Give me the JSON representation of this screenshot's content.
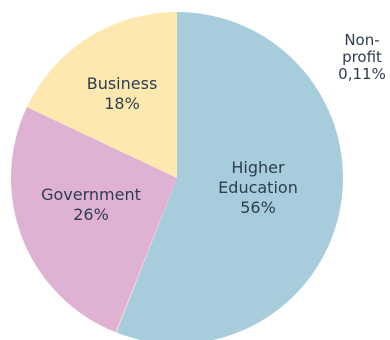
{
  "chart_data": {
    "type": "pie",
    "start_angle_deg": 0,
    "direction": "clockwise",
    "slices": [
      {
        "label_lines": [
          "Higher",
          "Education",
          "56%"
        ],
        "value": 56,
        "color": "#a7cddd",
        "label_placement": "inside"
      },
      {
        "label_lines": [
          "Non-",
          "profit",
          "0,11%"
        ],
        "value": 0.11,
        "color": "#f4d4d4",
        "label_placement": "outside"
      },
      {
        "label_lines": [
          "Government",
          "26%"
        ],
        "value": 26,
        "color": "#dfb1d3",
        "label_placement": "inside"
      },
      {
        "label_lines": [
          "Business",
          "18%"
        ],
        "value": 18,
        "color": "#fde8b0",
        "label_placement": "inside"
      }
    ],
    "legend": "none",
    "text_color": "#2e3d4f"
  }
}
